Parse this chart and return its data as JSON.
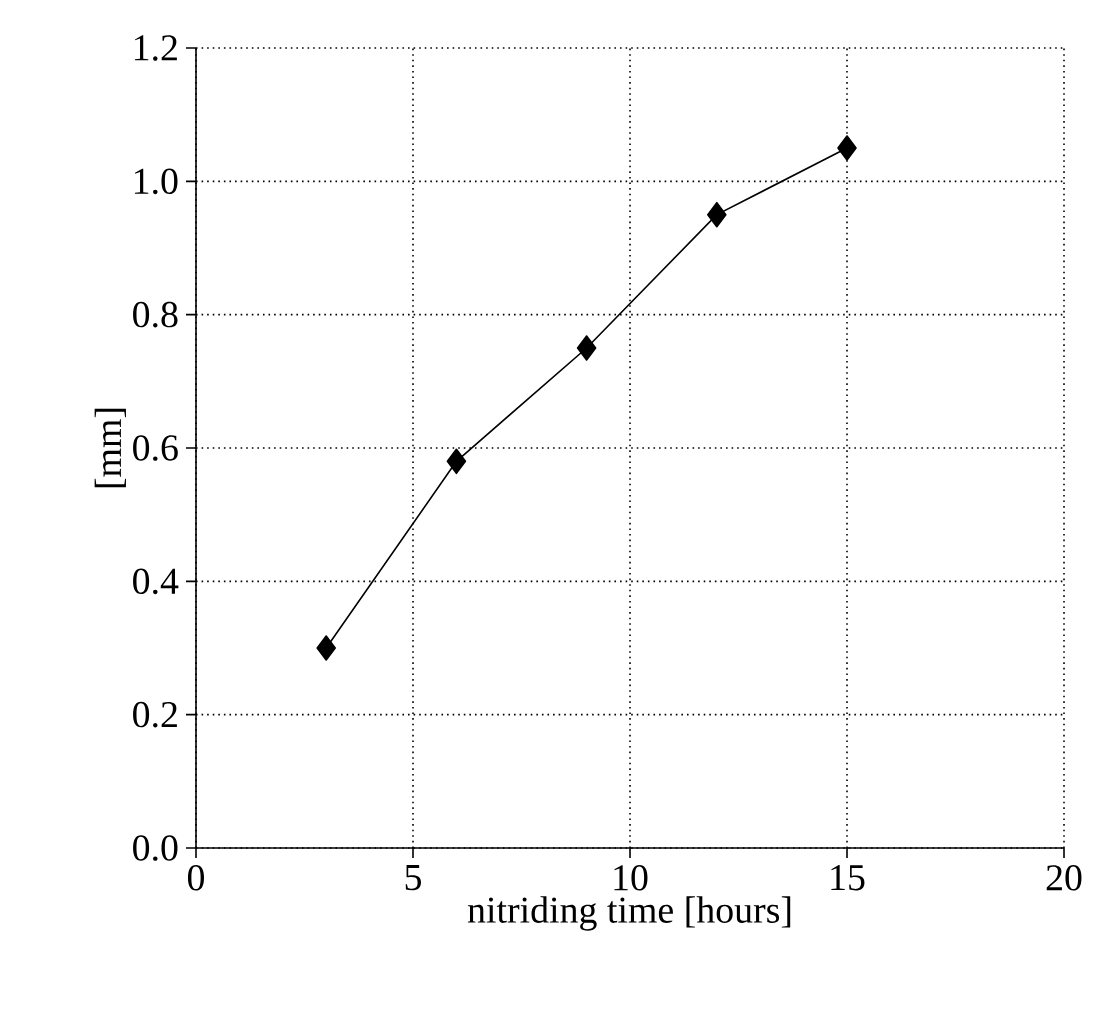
{
  "chart_data": {
    "type": "line",
    "xlabel": "nitriding time [hours]",
    "ylabel": "[mm]",
    "x": [
      3,
      6,
      9,
      12,
      15
    ],
    "series": [
      {
        "color": "#000000",
        "values": [
          0.3,
          0.58,
          0.75,
          0.95,
          1.05
        ]
      }
    ],
    "xlim": [
      0,
      20
    ],
    "xticks": [
      0,
      5,
      10,
      15,
      20
    ],
    "ylim": [
      0,
      1.2
    ],
    "yticks": [
      {
        "value": 0,
        "label": "0.0"
      },
      {
        "value": 0.2,
        "label": "0.2"
      },
      {
        "value": 0.4,
        "label": "0.4"
      },
      {
        "value": 0.6,
        "label": "0.6"
      },
      {
        "value": 0.8,
        "label": "0.8"
      },
      {
        "value": 1.0,
        "label": "1.0"
      },
      {
        "value": 1.2,
        "label": "1.2"
      }
    ],
    "grid": true,
    "marker": "diamond",
    "line_style": "solid"
  }
}
